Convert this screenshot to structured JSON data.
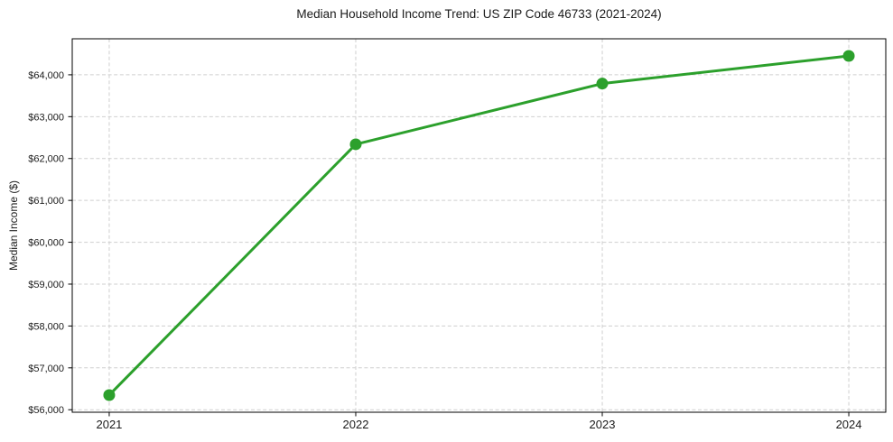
{
  "figure": {
    "background": "#ffffff"
  },
  "chart_data": {
    "type": "line",
    "title": "Median Household Income Trend: US ZIP Code 46733 (2021-2024)",
    "xlabel": "",
    "ylabel": "Median Income ($)",
    "categories": [
      2021,
      2022,
      2023,
      2024
    ],
    "x_tick_labels": [
      "2021",
      "2022",
      "2023",
      "2024"
    ],
    "series": [
      {
        "color": "#2ca02c",
        "values": [
          56350,
          62340,
          63790,
          64450
        ]
      }
    ],
    "y_ticks": [
      56000,
      57000,
      58000,
      59000,
      60000,
      61000,
      62000,
      63000,
      64000
    ],
    "y_tick_labels": [
      "$56,000",
      "$57,000",
      "$58,000",
      "$59,000",
      "$60,000",
      "$61,000",
      "$62,000",
      "$63,000",
      "$64,000"
    ],
    "xlim": [
      2020.85,
      2024.15
    ],
    "ylim": [
      55940,
      64860
    ],
    "grid": true,
    "grid_color": "#cfcfcf",
    "axis_color": "#000000",
    "text_color": "#1a1a1a",
    "marker": "circle",
    "legend_position": "none"
  }
}
